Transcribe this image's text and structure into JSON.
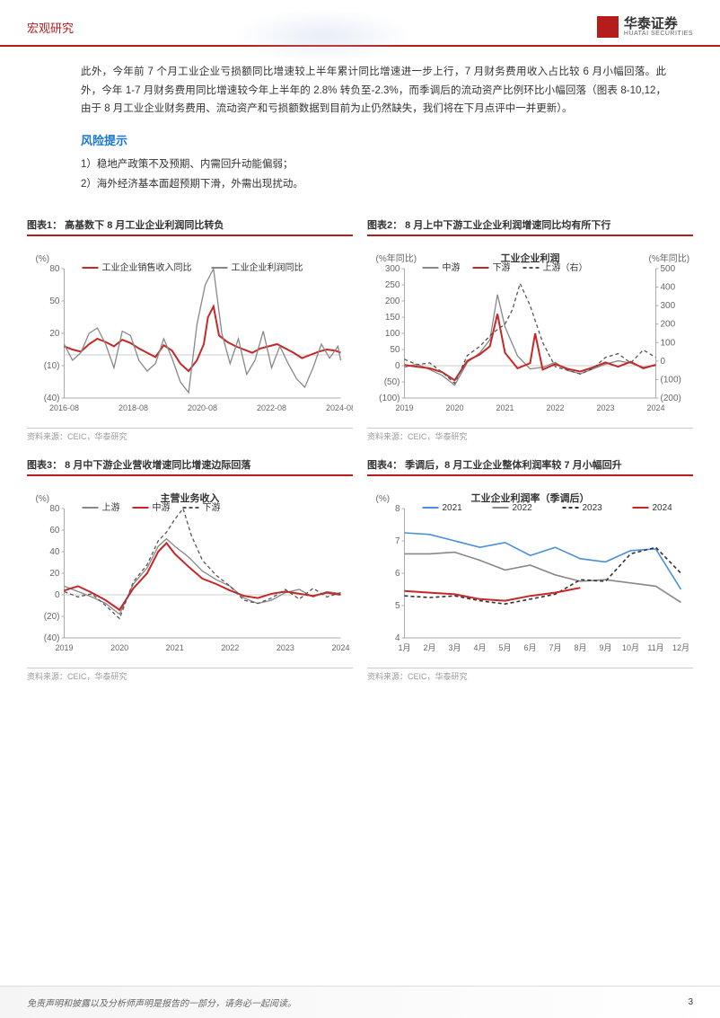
{
  "header": {
    "category": "宏观研究",
    "logo_cn": "华泰证券",
    "logo_en": "HUATAI SECURITIES"
  },
  "intro_para_1": "此外，今年前 7 个月工业企业亏损额同比增速较上半年累计同比增速进一步上行，7 月财务费用收入占比较 6 月小幅回落。此外，今年 1-7 月财务费用同比增速较今年上半年的 2.8% 转负至-2.3%，而季调后的流动资产比例环比小幅回落（图表 8-10,12，由于 8 月工业企业财务费用、流动资产和亏损额数据到目前为止仍然缺失，我们将在下月点评中一并更新）。",
  "risk": {
    "title": "风险提示",
    "items": [
      "1）稳地产政策不及预期、内需回升动能偏弱；",
      "2）海外经济基本面超预期下滑，外需出现扰动。"
    ]
  },
  "charts": {
    "chart1": {
      "title": "图表1：  高基数下 8 月工业企业利润同比转负",
      "type": "line",
      "source": "资料来源：CEIC，华泰研究",
      "y_unit": "(%)",
      "y_ticks": [
        -40,
        -10,
        20,
        50,
        80
      ],
      "y_tick_labels": [
        "(40)",
        "(10)",
        "20",
        "50",
        "80"
      ],
      "x_ticks": [
        "2016-08",
        "2018-08",
        "2020-08",
        "2022-08",
        "2024-08"
      ],
      "legend": [
        {
          "label": "工业企业销售收入同比",
          "color": "#c62828",
          "dash": false
        },
        {
          "label": "工业企业利润同比",
          "color": "#888888",
          "dash": false
        }
      ],
      "series": {
        "rev": {
          "color": "#c62828",
          "width": 2,
          "x": [
            0,
            0.03,
            0.06,
            0.09,
            0.12,
            0.15,
            0.18,
            0.21,
            0.24,
            0.27,
            0.3,
            0.33,
            0.36,
            0.39,
            0.42,
            0.45,
            0.48,
            0.505,
            0.52,
            0.54,
            0.56,
            0.59,
            0.62,
            0.65,
            0.68,
            0.71,
            0.74,
            0.77,
            0.8,
            0.83,
            0.86,
            0.89,
            0.92,
            0.95,
            0.98,
            1.0
          ],
          "y": [
            8,
            5,
            3,
            10,
            15,
            12,
            8,
            14,
            11,
            6,
            2,
            -2,
            9,
            4,
            -8,
            -15,
            -5,
            10,
            35,
            45,
            18,
            12,
            8,
            5,
            2,
            6,
            8,
            10,
            6,
            2,
            -3,
            0,
            3,
            5,
            4,
            2
          ]
        },
        "profit": {
          "color": "#888888",
          "width": 1.3,
          "x": [
            0,
            0.03,
            0.06,
            0.09,
            0.12,
            0.15,
            0.18,
            0.21,
            0.24,
            0.27,
            0.3,
            0.33,
            0.36,
            0.39,
            0.42,
            0.45,
            0.48,
            0.51,
            0.54,
            0.57,
            0.6,
            0.63,
            0.66,
            0.69,
            0.72,
            0.75,
            0.78,
            0.81,
            0.84,
            0.87,
            0.9,
            0.93,
            0.96,
            0.99,
            1.0
          ],
          "y": [
            10,
            -5,
            2,
            20,
            25,
            10,
            -12,
            22,
            18,
            -5,
            -15,
            -8,
            15,
            -3,
            -25,
            -35,
            28,
            65,
            80,
            20,
            -8,
            15,
            -18,
            -5,
            22,
            -12,
            8,
            -8,
            -22,
            -30,
            -12,
            10,
            -3,
            8,
            -5
          ]
        }
      }
    },
    "chart2": {
      "title": "图表2：  8 月上中下游工业企业利润增速同比均有所下行",
      "type": "line-dual",
      "source": "资料来源：CEIC，华泰研究",
      "chart_heading": "工业企业利润",
      "y_left_unit": "(%年同比)",
      "y_right_unit": "(%年同比)",
      "y_left_ticks": [
        -100,
        -50,
        0,
        50,
        100,
        150,
        200,
        250,
        300
      ],
      "y_left_labels": [
        "(100)",
        "(50)",
        "0",
        "50",
        "100",
        "150",
        "200",
        "250",
        "300"
      ],
      "y_right_ticks": [
        -200,
        -100,
        0,
        100,
        200,
        300,
        400,
        500
      ],
      "y_right_labels": [
        "(200)",
        "(100)",
        "0",
        "100",
        "200",
        "300",
        "400",
        "500"
      ],
      "x_ticks": [
        "2019",
        "2020",
        "2021",
        "2022",
        "2023",
        "2024"
      ],
      "legend": [
        {
          "label": "中游",
          "color": "#888888",
          "dash": false
        },
        {
          "label": "下游",
          "color": "#c62828",
          "dash": false
        },
        {
          "label": "上游（右）",
          "color": "#555555",
          "dash": true
        }
      ],
      "series": {
        "mid": {
          "color": "#888888",
          "width": 1.3,
          "axis": "left",
          "x": [
            0,
            0.05,
            0.1,
            0.15,
            0.2,
            0.25,
            0.3,
            0.34,
            0.37,
            0.4,
            0.45,
            0.5,
            0.55,
            0.6,
            0.65,
            0.7,
            0.75,
            0.8,
            0.85,
            0.9,
            0.95,
            1.0
          ],
          "y": [
            -5,
            5,
            -12,
            -30,
            -60,
            10,
            40,
            80,
            220,
            120,
            30,
            -10,
            -5,
            10,
            -15,
            -25,
            -10,
            5,
            15,
            8,
            -5,
            0
          ]
        },
        "down": {
          "color": "#c62828",
          "width": 2,
          "axis": "left",
          "x": [
            0,
            0.05,
            0.1,
            0.15,
            0.2,
            0.25,
            0.3,
            0.34,
            0.37,
            0.4,
            0.45,
            0.5,
            0.52,
            0.55,
            0.6,
            0.65,
            0.7,
            0.75,
            0.8,
            0.85,
            0.9,
            0.95,
            1.0
          ],
          "y": [
            2,
            -3,
            -8,
            -20,
            -45,
            15,
            35,
            60,
            160,
            40,
            -8,
            8,
            100,
            -12,
            5,
            -10,
            -18,
            -5,
            10,
            -3,
            12,
            -8,
            3
          ]
        },
        "up": {
          "color": "#555555",
          "width": 1.3,
          "dash": true,
          "axis": "right",
          "x": [
            0,
            0.05,
            0.1,
            0.15,
            0.2,
            0.25,
            0.3,
            0.35,
            0.4,
            0.43,
            0.46,
            0.5,
            0.55,
            0.6,
            0.65,
            0.7,
            0.75,
            0.8,
            0.85,
            0.9,
            0.95,
            1.0
          ],
          "y": [
            10,
            -20,
            -10,
            -60,
            -120,
            30,
            80,
            150,
            200,
            280,
            420,
            300,
            100,
            -30,
            -50,
            -70,
            -40,
            20,
            40,
            -10,
            60,
            20
          ]
        }
      }
    },
    "chart3": {
      "title": "图表3：  8 月中下游企业营收增速同比增速边际回落",
      "type": "line",
      "source": "资料来源：CEIC，华泰研究",
      "chart_heading": "主营业务收入",
      "y_unit": "(%)",
      "y_ticks": [
        -40,
        -20,
        0,
        20,
        40,
        60,
        80
      ],
      "y_tick_labels": [
        "(40)",
        "(20)",
        "0",
        "20",
        "40",
        "60",
        "80"
      ],
      "x_ticks": [
        "2019",
        "2020",
        "2021",
        "2022",
        "2023",
        "2024"
      ],
      "legend": [
        {
          "label": "上游",
          "color": "#888888",
          "dash": false
        },
        {
          "label": "中游",
          "color": "#c62828",
          "dash": false
        },
        {
          "label": "下游",
          "color": "#555555",
          "dash": true
        }
      ],
      "series": {
        "up": {
          "color": "#888888",
          "width": 1.3,
          "x": [
            0,
            0.05,
            0.1,
            0.15,
            0.2,
            0.25,
            0.3,
            0.34,
            0.37,
            0.4,
            0.45,
            0.5,
            0.55,
            0.6,
            0.65,
            0.7,
            0.75,
            0.8,
            0.85,
            0.9,
            0.95,
            1.0
          ],
          "y": [
            8,
            3,
            -2,
            -8,
            -18,
            10,
            25,
            45,
            52,
            45,
            35,
            22,
            14,
            8,
            -3,
            -8,
            -5,
            2,
            5,
            -2,
            3,
            1
          ]
        },
        "mid": {
          "color": "#c62828",
          "width": 2,
          "x": [
            0,
            0.05,
            0.1,
            0.15,
            0.2,
            0.25,
            0.3,
            0.34,
            0.37,
            0.4,
            0.45,
            0.5,
            0.55,
            0.6,
            0.65,
            0.7,
            0.75,
            0.8,
            0.85,
            0.9,
            0.95,
            1.0
          ],
          "y": [
            4,
            8,
            2,
            -5,
            -14,
            6,
            20,
            40,
            48,
            38,
            26,
            15,
            10,
            4,
            -1,
            -3,
            1,
            3,
            1,
            -1,
            2,
            0
          ]
        },
        "down": {
          "color": "#555555",
          "width": 1.3,
          "dash": true,
          "x": [
            0,
            0.05,
            0.1,
            0.15,
            0.2,
            0.25,
            0.3,
            0.34,
            0.37,
            0.4,
            0.43,
            0.46,
            0.5,
            0.55,
            0.6,
            0.65,
            0.7,
            0.75,
            0.8,
            0.85,
            0.9,
            0.95,
            1.0
          ],
          "y": [
            3,
            -2,
            1,
            -10,
            -22,
            12,
            28,
            50,
            58,
            70,
            80,
            55,
            32,
            18,
            8,
            -5,
            -8,
            -3,
            5,
            -4,
            6,
            -2,
            2
          ]
        }
      }
    },
    "chart4": {
      "title": "图表4：  季调后，8 月工业企业整体利润率较 7 月小幅回升",
      "type": "line",
      "source": "资料来源：CEIC，华泰研究",
      "chart_heading": "工业企业利润率（季调后）",
      "y_unit": "(%)",
      "y_ticks": [
        4,
        5,
        6,
        7,
        8
      ],
      "y_tick_labels": [
        "4",
        "5",
        "6",
        "7",
        "8"
      ],
      "x_ticks": [
        "1月",
        "2月",
        "3月",
        "4月",
        "5月",
        "6月",
        "7月",
        "8月",
        "9月",
        "10月",
        "11月",
        "12月"
      ],
      "legend": [
        {
          "label": "2021",
          "color": "#4a90d9",
          "dash": false
        },
        {
          "label": "2022",
          "color": "#888888",
          "dash": false
        },
        {
          "label": "2023",
          "color": "#333333",
          "dash": true
        },
        {
          "label": "2024",
          "color": "#c62828",
          "dash": false
        }
      ],
      "series": {
        "s2021": {
          "color": "#4a90d9",
          "width": 1.6,
          "x": [
            0,
            0.091,
            0.182,
            0.273,
            0.364,
            0.455,
            0.545,
            0.636,
            0.727,
            0.818,
            0.909,
            1.0
          ],
          "y": [
            7.25,
            7.2,
            7.0,
            6.8,
            6.95,
            6.55,
            6.8,
            6.45,
            6.35,
            6.7,
            6.75,
            5.5
          ]
        },
        "s2022": {
          "color": "#888888",
          "width": 1.6,
          "x": [
            0,
            0.091,
            0.182,
            0.273,
            0.364,
            0.455,
            0.545,
            0.636,
            0.727,
            0.818,
            0.909,
            1.0
          ],
          "y": [
            6.6,
            6.6,
            6.65,
            6.4,
            6.1,
            6.25,
            5.95,
            5.75,
            5.8,
            5.7,
            5.6,
            5.1
          ]
        },
        "s2023": {
          "color": "#333333",
          "width": 1.6,
          "dash": true,
          "x": [
            0,
            0.091,
            0.182,
            0.273,
            0.364,
            0.455,
            0.545,
            0.636,
            0.727,
            0.818,
            0.909,
            1.0
          ],
          "y": [
            5.3,
            5.25,
            5.3,
            5.15,
            5.05,
            5.2,
            5.35,
            5.8,
            5.75,
            6.6,
            6.8,
            6.0
          ]
        },
        "s2024": {
          "color": "#c62828",
          "width": 2,
          "x": [
            0,
            0.091,
            0.182,
            0.273,
            0.364,
            0.455,
            0.545,
            0.636
          ],
          "y": [
            5.45,
            5.4,
            5.35,
            5.2,
            5.15,
            5.3,
            5.4,
            5.55
          ]
        }
      }
    }
  },
  "footer": {
    "disclaimer": "免责声明和披露以及分析师声明是报告的一部分，请务必一起阅读。",
    "page": "3"
  }
}
